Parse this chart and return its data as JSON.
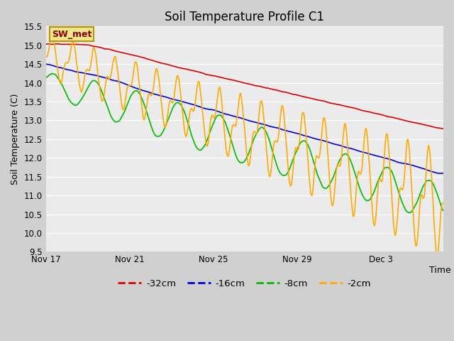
{
  "title": "Soil Temperature Profile C1",
  "xlabel": "Time",
  "ylabel": "Soil Temperature (C)",
  "ylim": [
    9.5,
    15.5
  ],
  "yticks": [
    9.5,
    10.0,
    10.5,
    11.0,
    11.5,
    12.0,
    12.5,
    13.0,
    13.5,
    14.0,
    14.5,
    15.0,
    15.5
  ],
  "xtick_labels": [
    "Nov 17",
    "Nov 21",
    "Nov 25",
    "Nov 29",
    "Dec 3"
  ],
  "xtick_positions": [
    0,
    4,
    8,
    12,
    16
  ],
  "plot_bg_color": "#ebebeb",
  "fig_bg_color": "#d0d0d0",
  "grid_color": "#ffffff",
  "legend_label": "SW_met",
  "legend_box_facecolor": "#f0e68c",
  "legend_box_edgecolor": "#b8960c",
  "legend_text_color": "#8B0000",
  "series": {
    "-32cm": {
      "color": "#dd0000",
      "lw": 1.2
    },
    "-16cm": {
      "color": "#0000dd",
      "lw": 1.2
    },
    "-8cm": {
      "color": "#00bb00",
      "lw": 1.2
    },
    "-2cm": {
      "color": "#ffaa00",
      "lw": 1.2
    }
  },
  "legend_items": [
    {
      "label": "-32cm",
      "color": "#dd0000"
    },
    {
      "label": "-16cm",
      "color": "#0000dd"
    },
    {
      "label": "-8cm",
      "color": "#00bb00"
    },
    {
      "label": "-2cm",
      "color": "#ffaa00"
    }
  ]
}
